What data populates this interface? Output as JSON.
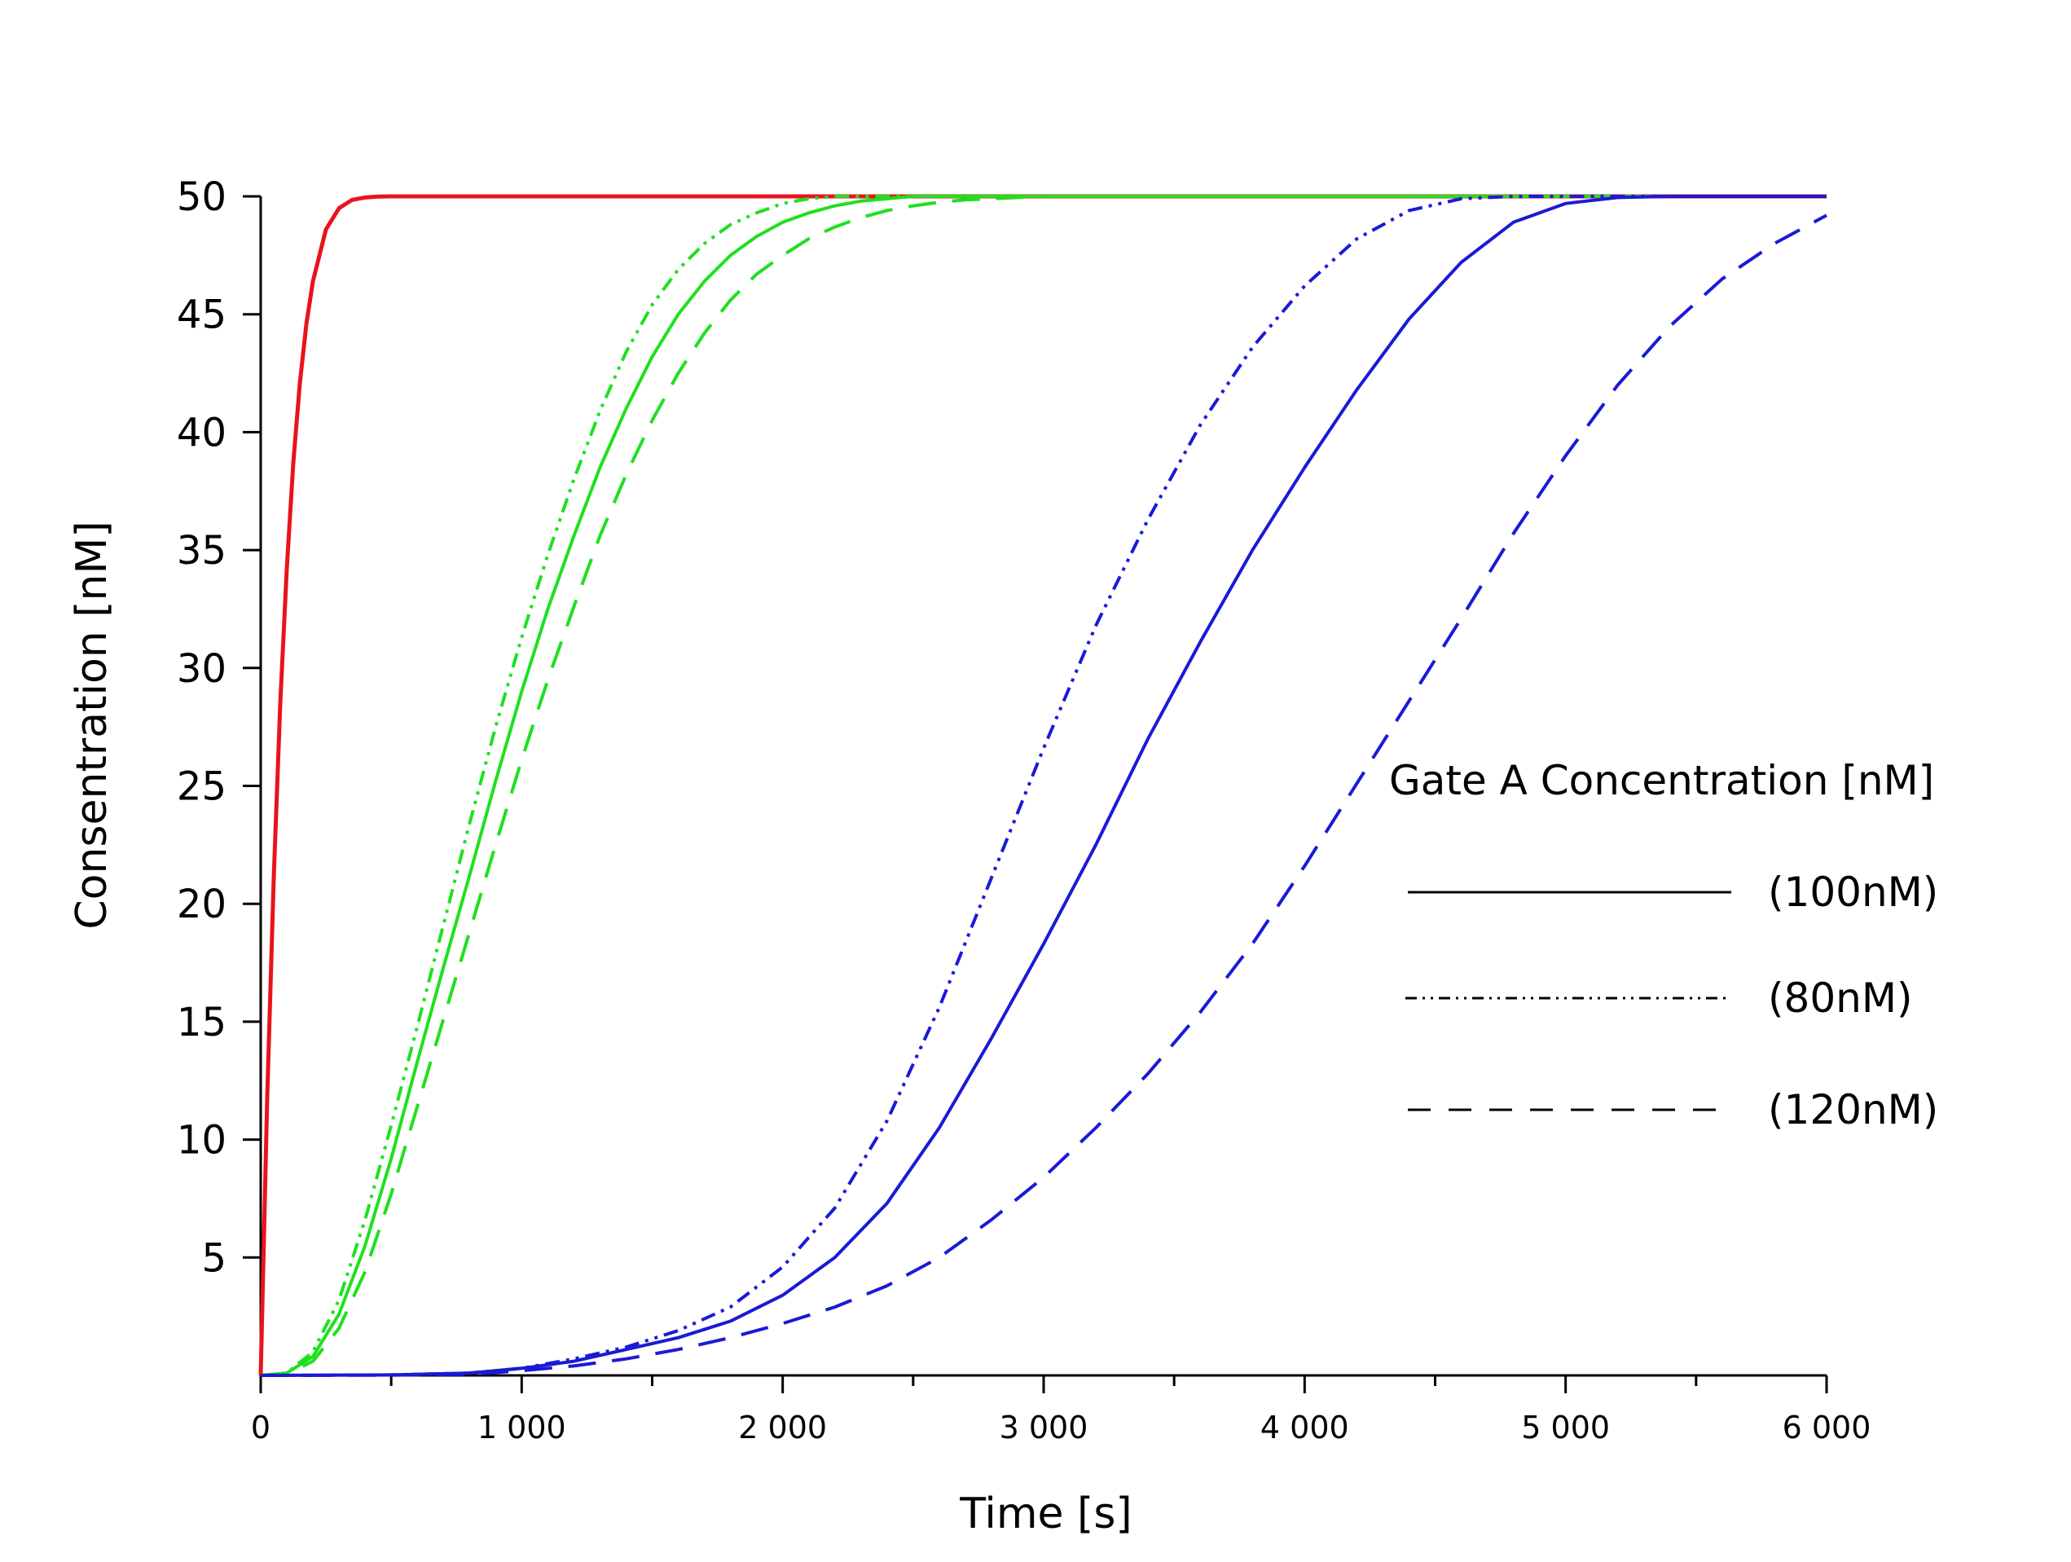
{
  "chart_data": {
    "type": "line",
    "title": "",
    "xlabel": "Time [s]",
    "ylabel": "Consentration [nM]",
    "xlim": [
      0,
      6000
    ],
    "ylim": [
      0,
      50
    ],
    "x_ticks": [
      0,
      1000,
      2000,
      3000,
      4000,
      5000,
      6000
    ],
    "x_tick_labels": [
      "0",
      "1 000",
      "2 000",
      "3 000",
      "4 000",
      "5 000",
      "6 000"
    ],
    "y_ticks": [
      5,
      10,
      15,
      20,
      25,
      30,
      35,
      40,
      45,
      50
    ],
    "y_tick_labels": [
      "5",
      "10",
      "15",
      "20",
      "25",
      "30",
      "35",
      "40",
      "45",
      "50"
    ],
    "grid": false,
    "legend": {
      "title": "Gate A Concentration [nM]",
      "placement": "right",
      "entries": [
        {
          "label": "(100nM)",
          "style": "solid"
        },
        {
          "label": "(80nM)",
          "style": "dashdotdot"
        },
        {
          "label": "(120nM)",
          "style": "dashed"
        }
      ]
    },
    "colors": {
      "red": "#e8141b",
      "green": "#1fe01f",
      "blue": "#1a1ad6"
    },
    "series": [
      {
        "color": "#e8141b",
        "style": "solid",
        "x": [
          0,
          25,
          50,
          75,
          100,
          125,
          150,
          175,
          200,
          250,
          300,
          350,
          400,
          450,
          500,
          550,
          600,
          6000
        ],
        "y": [
          0,
          11.8,
          21.1,
          28.5,
          34.2,
          38.7,
          42.1,
          44.6,
          46.4,
          48.6,
          49.5,
          49.85,
          49.95,
          49.99,
          50,
          50,
          50,
          50
        ]
      },
      {
        "color": "#1fe01f",
        "style": "solid",
        "x": [
          0,
          100,
          200,
          300,
          400,
          500,
          600,
          700,
          800,
          900,
          1000,
          1100,
          1200,
          1300,
          1400,
          1500,
          1600,
          1700,
          1800,
          1900,
          2000,
          2100,
          2200,
          2300,
          2400,
          2500,
          2600,
          6000
        ],
        "y": [
          0,
          0.1,
          0.8,
          2.6,
          5.5,
          9.2,
          13.3,
          17.3,
          21.2,
          25.2,
          29.0,
          32.5,
          35.6,
          38.5,
          41.0,
          43.2,
          45.0,
          46.4,
          47.5,
          48.3,
          48.9,
          49.3,
          49.6,
          49.8,
          49.9,
          50,
          50,
          50
        ]
      },
      {
        "color": "#1fe01f",
        "style": "dashdotdot",
        "x": [
          0,
          100,
          200,
          300,
          400,
          500,
          600,
          700,
          800,
          900,
          1000,
          1100,
          1200,
          1300,
          1400,
          1500,
          1600,
          1700,
          1800,
          1900,
          2000,
          2100,
          2200,
          2300,
          6000
        ],
        "y": [
          0,
          0.1,
          1.0,
          3.2,
          6.6,
          10.6,
          14.8,
          19.1,
          23.4,
          27.5,
          31.3,
          34.8,
          38.0,
          40.9,
          43.4,
          45.4,
          46.9,
          48.0,
          48.8,
          49.3,
          49.7,
          49.9,
          50,
          50,
          50
        ]
      },
      {
        "color": "#1fe01f",
        "style": "dashed",
        "x": [
          0,
          100,
          200,
          300,
          400,
          500,
          600,
          700,
          800,
          900,
          1000,
          1100,
          1200,
          1300,
          1400,
          1500,
          1600,
          1700,
          1800,
          1900,
          2000,
          2100,
          2200,
          2300,
          2400,
          2500,
          2600,
          2700,
          2800,
          2900,
          3000,
          3100,
          6000
        ],
        "y": [
          0,
          0.05,
          0.6,
          2.0,
          4.4,
          7.7,
          11.4,
          15.1,
          18.8,
          22.5,
          26.1,
          29.5,
          32.6,
          35.6,
          38.2,
          40.5,
          42.5,
          44.2,
          45.6,
          46.7,
          47.5,
          48.2,
          48.7,
          49.1,
          49.4,
          49.6,
          49.75,
          49.85,
          49.9,
          49.95,
          50,
          50,
          50
        ]
      },
      {
        "color": "#1a1ad6",
        "style": "solid",
        "x": [
          0,
          500,
          800,
          1000,
          1200,
          1400,
          1600,
          1800,
          2000,
          2200,
          2400,
          2600,
          2800,
          3000,
          3200,
          3400,
          3600,
          3800,
          4000,
          4200,
          4400,
          4600,
          4800,
          5000,
          5200,
          5400,
          6000
        ],
        "y": [
          0,
          0.02,
          0.1,
          0.3,
          0.6,
          1.1,
          1.6,
          2.3,
          3.4,
          5.0,
          7.3,
          10.5,
          14.3,
          18.3,
          22.5,
          27.0,
          31.1,
          35.0,
          38.5,
          41.8,
          44.8,
          47.2,
          48.9,
          49.7,
          49.95,
          50,
          50
        ]
      },
      {
        "color": "#1a1ad6",
        "style": "dashdotdot",
        "x": [
          0,
          500,
          800,
          1000,
          1200,
          1400,
          1600,
          1800,
          2000,
          2200,
          2400,
          2600,
          2800,
          3000,
          3200,
          3400,
          3600,
          3800,
          4000,
          4200,
          4400,
          4600,
          4800,
          6000
        ],
        "y": [
          0,
          0.02,
          0.1,
          0.3,
          0.7,
          1.2,
          1.9,
          2.9,
          4.6,
          7.1,
          10.8,
          15.6,
          21.1,
          26.6,
          31.8,
          36.3,
          40.3,
          43.6,
          46.2,
          48.2,
          49.4,
          49.9,
          50,
          50
        ]
      },
      {
        "color": "#1a1ad6",
        "style": "dashed",
        "x": [
          0,
          500,
          800,
          1000,
          1200,
          1400,
          1600,
          1800,
          2000,
          2200,
          2400,
          2600,
          2800,
          3000,
          3200,
          3400,
          3600,
          3800,
          4000,
          4200,
          4400,
          4600,
          4800,
          5000,
          5200,
          5400,
          5600,
          5800,
          6000
        ],
        "y": [
          0,
          0.01,
          0.05,
          0.2,
          0.4,
          0.7,
          1.1,
          1.6,
          2.2,
          2.9,
          3.8,
          5.0,
          6.6,
          8.4,
          10.5,
          12.8,
          15.4,
          18.3,
          21.6,
          25.1,
          28.6,
          32.1,
          35.7,
          39.0,
          42.0,
          44.5,
          46.5,
          48.0,
          49.2
        ]
      }
    ]
  }
}
